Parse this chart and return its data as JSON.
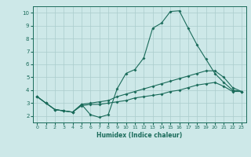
{
  "xlabel": "Humidex (Indice chaleur)",
  "bg_color": "#cde8e8",
  "grid_color": "#aacccc",
  "line_color": "#1a6b5a",
  "ylim": [
    1.5,
    10.5
  ],
  "xlim": [
    -0.5,
    23.5
  ],
  "yticks": [
    2,
    3,
    4,
    5,
    6,
    7,
    8,
    9,
    10
  ],
  "xticks": [
    0,
    1,
    2,
    3,
    4,
    5,
    6,
    7,
    8,
    9,
    10,
    11,
    12,
    13,
    14,
    15,
    16,
    17,
    18,
    19,
    20,
    21,
    22,
    23
  ],
  "line1_x": [
    0,
    1,
    2,
    3,
    4,
    5,
    6,
    7,
    8,
    9,
    10,
    11,
    12,
    13,
    14,
    15,
    16,
    17,
    18,
    19,
    20,
    21,
    22,
    23
  ],
  "line1_y": [
    3.5,
    3.0,
    2.5,
    2.4,
    2.3,
    2.9,
    2.1,
    1.9,
    2.1,
    4.1,
    5.3,
    5.6,
    6.5,
    8.8,
    9.2,
    10.1,
    10.15,
    8.8,
    7.5,
    6.4,
    5.3,
    4.6,
    4.0,
    3.9
  ],
  "line2_x": [
    0,
    1,
    2,
    3,
    4,
    5,
    6,
    7,
    8,
    9,
    10,
    11,
    12,
    13,
    14,
    15,
    16,
    17,
    18,
    19,
    20,
    21,
    22,
    23
  ],
  "line2_y": [
    3.5,
    3.0,
    2.5,
    2.4,
    2.3,
    2.9,
    3.0,
    3.1,
    3.2,
    3.5,
    3.7,
    3.9,
    4.1,
    4.3,
    4.5,
    4.7,
    4.9,
    5.1,
    5.3,
    5.5,
    5.5,
    5.0,
    4.2,
    3.9
  ],
  "line3_x": [
    0,
    1,
    2,
    3,
    4,
    5,
    6,
    7,
    8,
    9,
    10,
    11,
    12,
    13,
    14,
    15,
    16,
    17,
    18,
    19,
    20,
    21,
    22,
    23
  ],
  "line3_y": [
    3.5,
    3.0,
    2.5,
    2.4,
    2.3,
    2.8,
    2.9,
    2.9,
    3.0,
    3.1,
    3.2,
    3.4,
    3.5,
    3.6,
    3.7,
    3.9,
    4.0,
    4.2,
    4.4,
    4.5,
    4.6,
    4.3,
    3.9,
    3.9
  ]
}
